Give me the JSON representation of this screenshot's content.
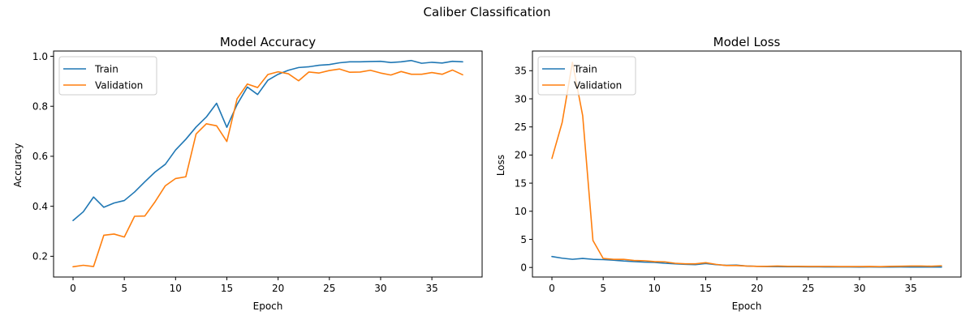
{
  "figure": {
    "suptitle": "Caliber Classification"
  },
  "colors": {
    "train": "#1f77b4",
    "validation": "#ff7f0e"
  },
  "chart_data": [
    {
      "type": "line",
      "title": "Model Accuracy",
      "xlabel": "Epoch",
      "ylabel": "Accuracy",
      "xlim": [
        -1.9,
        39.9
      ],
      "ylim": [
        0.117,
        1.021
      ],
      "xticks": [
        0,
        5,
        10,
        15,
        20,
        25,
        30,
        35
      ],
      "yticks": [
        0.2,
        0.4,
        0.6,
        0.8,
        1.0
      ],
      "ytick_labels": [
        "0.2",
        "0.4",
        "0.6",
        "0.8",
        "1.0"
      ],
      "legend": "top-left",
      "grid": false,
      "x": [
        0,
        1,
        2,
        3,
        4,
        5,
        6,
        7,
        8,
        9,
        10,
        11,
        12,
        13,
        14,
        15,
        16,
        17,
        18,
        19,
        20,
        21,
        22,
        23,
        24,
        25,
        26,
        27,
        28,
        29,
        30,
        31,
        32,
        33,
        34,
        35,
        36,
        37,
        38
      ],
      "series": [
        {
          "name": "Train",
          "values": [
            0.343,
            0.378,
            0.437,
            0.396,
            0.413,
            0.423,
            0.457,
            0.498,
            0.537,
            0.568,
            0.625,
            0.668,
            0.717,
            0.757,
            0.812,
            0.716,
            0.807,
            0.877,
            0.847,
            0.904,
            0.928,
            0.944,
            0.955,
            0.958,
            0.964,
            0.967,
            0.974,
            0.978,
            0.978,
            0.979,
            0.98,
            0.975,
            0.978,
            0.983,
            0.972,
            0.976,
            0.973,
            0.98,
            0.978
          ]
        },
        {
          "name": "Validation",
          "values": [
            0.158,
            0.164,
            0.159,
            0.284,
            0.289,
            0.277,
            0.36,
            0.361,
            0.418,
            0.482,
            0.511,
            0.518,
            0.689,
            0.73,
            0.722,
            0.659,
            0.83,
            0.889,
            0.875,
            0.927,
            0.938,
            0.93,
            0.902,
            0.937,
            0.933,
            0.943,
            0.949,
            0.936,
            0.937,
            0.944,
            0.933,
            0.925,
            0.939,
            0.928,
            0.928,
            0.935,
            0.928,
            0.945,
            0.926
          ]
        }
      ]
    },
    {
      "type": "line",
      "title": "Model Loss",
      "xlabel": "Epoch",
      "ylabel": "Loss",
      "xlim": [
        -1.9,
        39.9
      ],
      "ylim": [
        -1.7,
        38.5
      ],
      "xticks": [
        0,
        5,
        10,
        15,
        20,
        25,
        30,
        35
      ],
      "yticks": [
        0,
        5,
        10,
        15,
        20,
        25,
        30,
        35
      ],
      "ytick_labels": [
        "0",
        "5",
        "10",
        "15",
        "20",
        "25",
        "30",
        "35"
      ],
      "legend": "top-left",
      "grid": false,
      "x": [
        0,
        1,
        2,
        3,
        4,
        5,
        6,
        7,
        8,
        9,
        10,
        11,
        12,
        13,
        14,
        15,
        16,
        17,
        18,
        19,
        20,
        21,
        22,
        23,
        24,
        25,
        26,
        27,
        28,
        29,
        30,
        31,
        32,
        33,
        34,
        35,
        36,
        37,
        38
      ],
      "series": [
        {
          "name": "Train",
          "values": [
            1.95,
            1.65,
            1.45,
            1.6,
            1.45,
            1.4,
            1.3,
            1.15,
            1.05,
            0.95,
            0.9,
            0.75,
            0.65,
            0.55,
            0.5,
            0.7,
            0.5,
            0.38,
            0.42,
            0.25,
            0.2,
            0.17,
            0.15,
            0.13,
            0.12,
            0.11,
            0.1,
            0.09,
            0.09,
            0.09,
            0.08,
            0.09,
            0.08,
            0.07,
            0.09,
            0.08,
            0.08,
            0.07,
            0.08
          ]
        },
        {
          "name": "Validation",
          "values": [
            19.4,
            25.8,
            36.5,
            27.0,
            4.8,
            1.6,
            1.45,
            1.45,
            1.25,
            1.2,
            1.05,
            1.0,
            0.75,
            0.65,
            0.65,
            0.85,
            0.55,
            0.35,
            0.35,
            0.25,
            0.2,
            0.2,
            0.25,
            0.2,
            0.2,
            0.18,
            0.18,
            0.18,
            0.16,
            0.16,
            0.16,
            0.18,
            0.15,
            0.2,
            0.22,
            0.25,
            0.25,
            0.22,
            0.3
          ]
        }
      ]
    }
  ]
}
